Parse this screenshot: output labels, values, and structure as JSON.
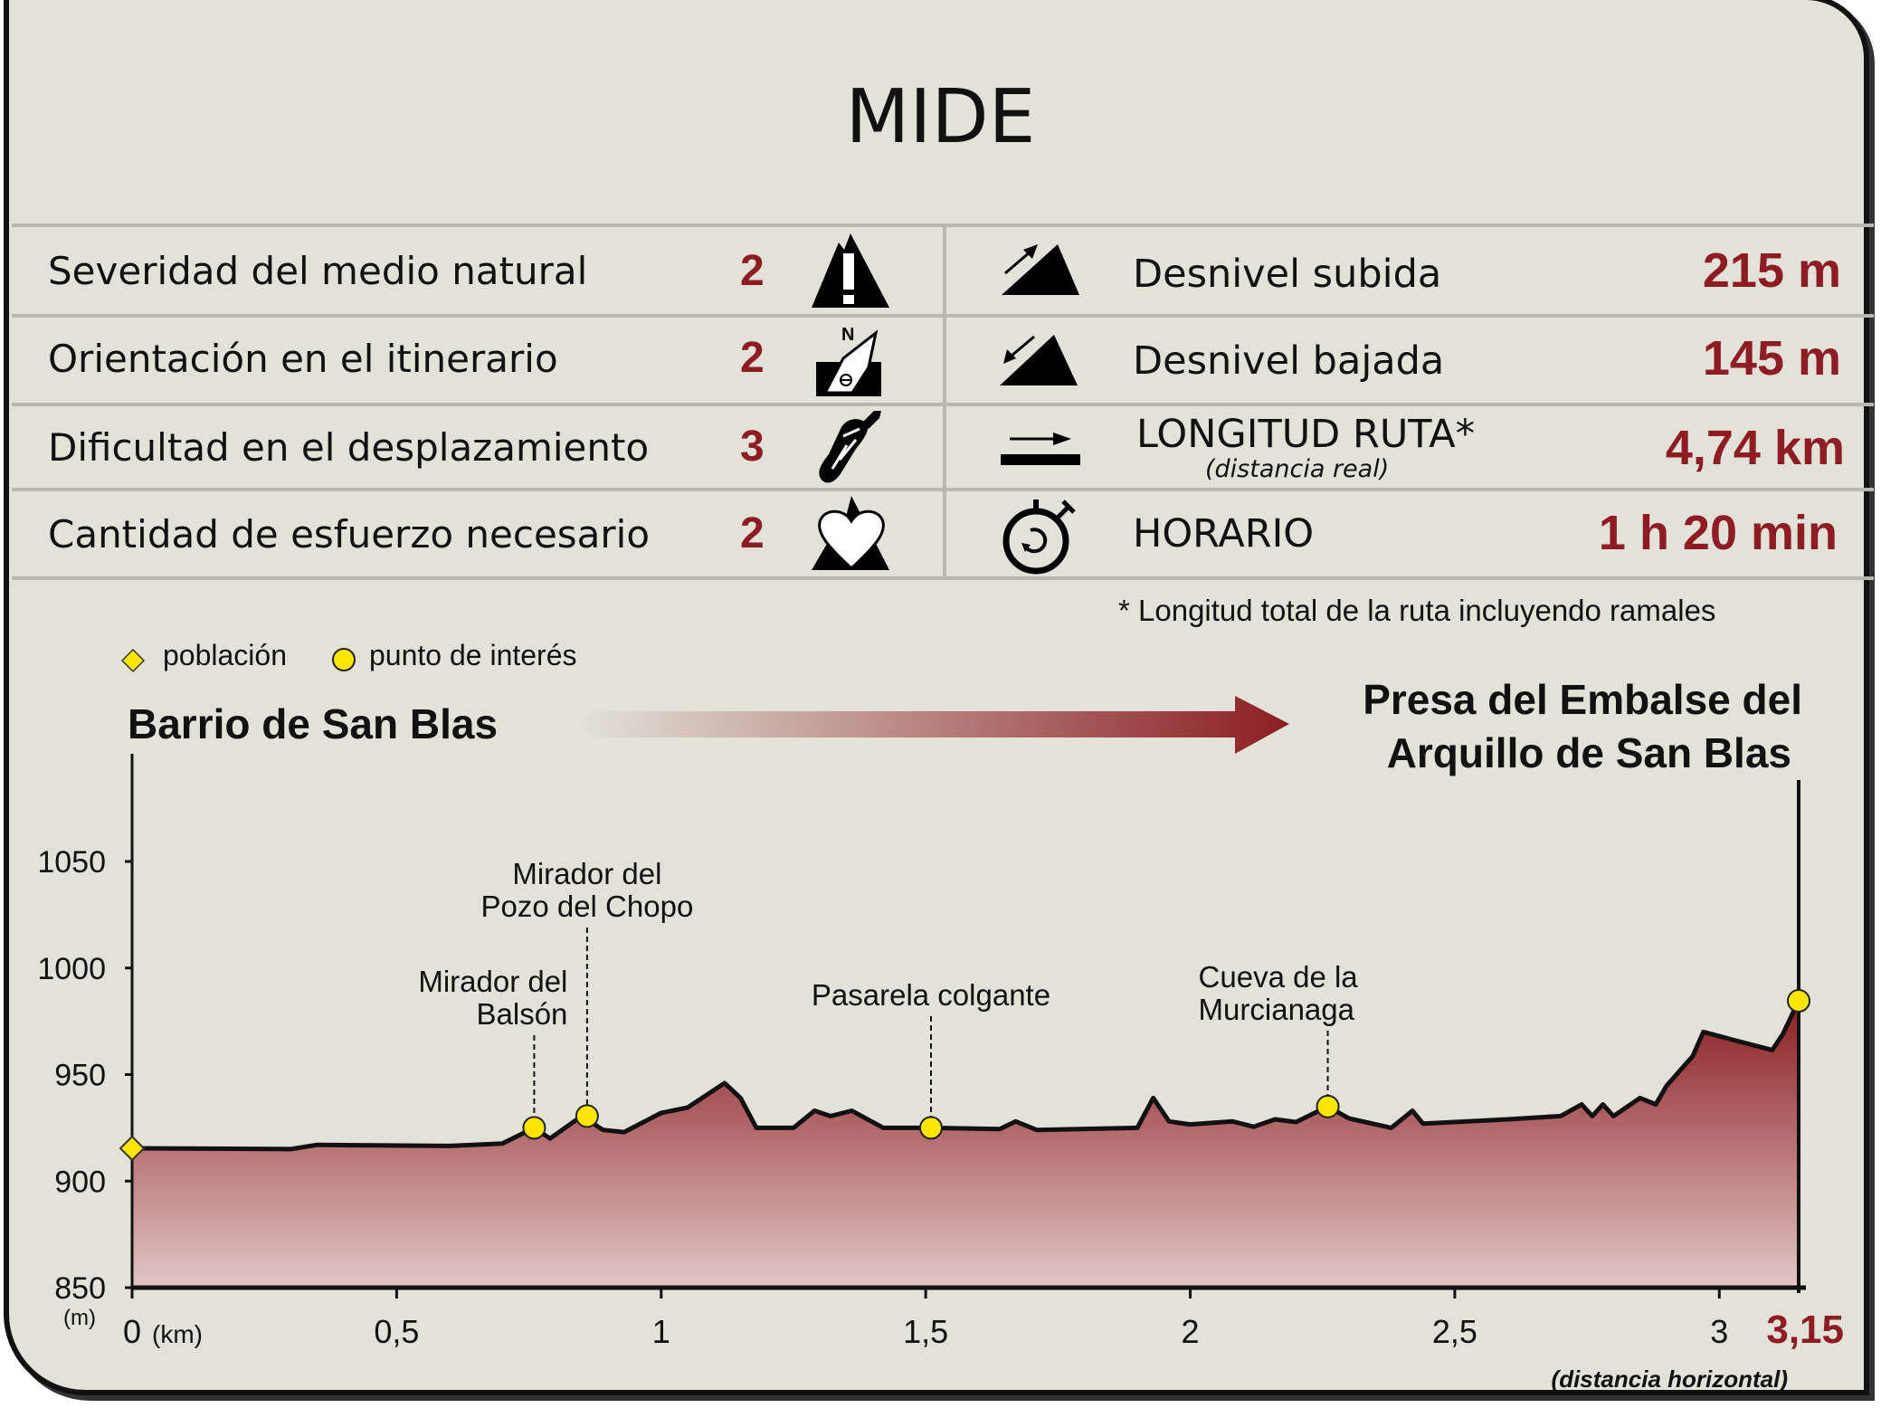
{
  "title": "MIDE",
  "mide_rows": [
    {
      "label": "Severidad del medio natural",
      "value": "2",
      "icon": "mountain-warning-icon"
    },
    {
      "label": "Orientación en el itinerario",
      "value": "2",
      "icon": "compass-north-icon"
    },
    {
      "label": "Dificultad en el desplazamiento",
      "value": "3",
      "icon": "boot-sole-icon"
    },
    {
      "label": "Cantidad de esfuerzo necesario",
      "value": "2",
      "icon": "heart-mountain-icon"
    }
  ],
  "route_rows": [
    {
      "label": "Desnivel subida",
      "value": "215 m",
      "icon": "ascent-icon"
    },
    {
      "label": "Desnivel bajada",
      "value": "145 m",
      "icon": "descent-icon"
    },
    {
      "label": "LONGITUD RUTA*",
      "sublabel": "(distancia real)",
      "value": "4,74 km",
      "icon": "distance-arrow-icon"
    },
    {
      "label": "HORARIO",
      "value": "1 h 20 min",
      "icon": "stopwatch-icon"
    }
  ],
  "footnote": "* Longitud total de la ruta incluyendo ramales",
  "legend": {
    "town": "población",
    "poi": "punto de interés"
  },
  "start_place": "Barrio de San Blas",
  "end_place": [
    "Presa del Embalse del",
    "Arquillo de San Blas"
  ],
  "colors": {
    "accent": "#8e1c24",
    "background": "#e2e2d8",
    "poi": "#ffe600",
    "fill_top": "#8b1e22",
    "fill_bottom": "#e2c6c6"
  },
  "chart_data": {
    "type": "area",
    "xlabel": "(km)",
    "ylabel": "(m)",
    "x_note": "(distancia horizontal)",
    "xlim": [
      0,
      3.15
    ],
    "ylim": [
      850,
      1090
    ],
    "x_ticks": [
      "0",
      "0,5",
      "1",
      "1,5",
      "2",
      "2,5",
      "3"
    ],
    "x_tick_values": [
      0,
      0.5,
      1,
      1.5,
      2,
      2.5,
      3
    ],
    "x_end_label": "3,15",
    "y_ticks": [
      850,
      900,
      950,
      1000,
      1050
    ],
    "profile": [
      [
        0,
        915.4
      ],
      [
        0.3,
        915
      ],
      [
        0.35,
        917
      ],
      [
        0.6,
        916.5
      ],
      [
        0.7,
        917.6
      ],
      [
        0.76,
        925
      ],
      [
        0.79,
        920
      ],
      [
        0.85,
        930.5
      ],
      [
        0.89,
        924
      ],
      [
        0.93,
        923
      ],
      [
        1.0,
        932
      ],
      [
        1.05,
        934.5
      ],
      [
        1.12,
        946
      ],
      [
        1.15,
        939
      ],
      [
        1.18,
        925
      ],
      [
        1.25,
        925
      ],
      [
        1.29,
        933
      ],
      [
        1.32,
        930.5
      ],
      [
        1.36,
        933
      ],
      [
        1.42,
        925
      ],
      [
        1.51,
        925
      ],
      [
        1.64,
        924.4
      ],
      [
        1.67,
        928
      ],
      [
        1.71,
        924
      ],
      [
        1.9,
        925
      ],
      [
        1.93,
        939
      ],
      [
        1.96,
        928
      ],
      [
        2.0,
        926.6
      ],
      [
        2.08,
        928
      ],
      [
        2.12,
        925.5
      ],
      [
        2.16,
        929
      ],
      [
        2.2,
        927.7
      ],
      [
        2.26,
        935
      ],
      [
        2.3,
        929.4
      ],
      [
        2.38,
        925
      ],
      [
        2.42,
        933
      ],
      [
        2.44,
        927
      ],
      [
        2.6,
        929
      ],
      [
        2.7,
        930.5
      ],
      [
        2.74,
        936
      ],
      [
        2.76,
        930.5
      ],
      [
        2.78,
        936
      ],
      [
        2.8,
        930.5
      ],
      [
        2.85,
        939
      ],
      [
        2.88,
        936
      ],
      [
        2.9,
        944.6
      ],
      [
        2.95,
        958.7
      ],
      [
        2.97,
        970
      ],
      [
        3.03,
        966
      ],
      [
        3.1,
        961.5
      ],
      [
        3.12,
        969
      ],
      [
        3.15,
        984.6
      ]
    ],
    "points": [
      {
        "type": "town",
        "x": 0,
        "y": 915.4,
        "label": ""
      },
      {
        "type": "poi",
        "x": 0.76,
        "y": 925,
        "label": [
          "Mirador del",
          "Balsón"
        ]
      },
      {
        "type": "poi",
        "x": 0.86,
        "y": 930.5,
        "label": [
          "Mirador del",
          "Pozo del Chopo"
        ]
      },
      {
        "type": "poi",
        "x": 1.51,
        "y": 925,
        "label": [
          "Pasarela colgante"
        ]
      },
      {
        "type": "poi",
        "x": 2.26,
        "y": 935,
        "label": [
          "Cueva de la",
          "Murcianaga"
        ]
      },
      {
        "type": "poi",
        "x": 3.15,
        "y": 984.6,
        "label": []
      }
    ]
  }
}
